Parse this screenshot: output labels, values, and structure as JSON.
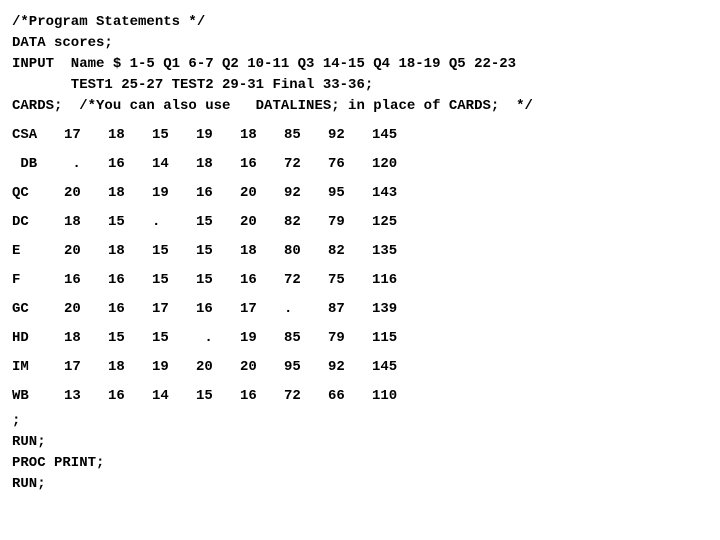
{
  "lines": {
    "comment": "/*Program Statements */",
    "data": "DATA scores;",
    "input1": "INPUT  Name $ 1-5 Q1 6-7 Q2 10-11 Q3 14-15 Q4 18-19 Q5 22-23",
    "input2": "       TEST1 25-27 TEST2 29-31 Final 33-36;",
    "cards": "CARDS;  /*You can also use   DATALINES; in place of CARDS;  */",
    "semi": ";",
    "run1": "RUN;",
    "proc": "PROC PRINT;",
    "run2": "RUN;"
  },
  "rows": [
    [
      "CSA",
      "17",
      "18",
      "15",
      "19",
      "18",
      "85",
      "92",
      "145"
    ],
    [
      " DB",
      " .",
      "16",
      "14",
      "18",
      "16",
      "72",
      "76",
      "120"
    ],
    [
      "QC",
      "20",
      "18",
      "19",
      "16",
      "20",
      "92",
      "95",
      "143"
    ],
    [
      "DC",
      "18",
      "15",
      ".",
      "15",
      "20",
      "82",
      "79",
      "125"
    ],
    [
      "E",
      "20",
      "18",
      "15",
      "15",
      "18",
      "80",
      "82",
      "135"
    ],
    [
      "F",
      "16",
      "16",
      "15",
      "15",
      "16",
      "72",
      "75",
      "116"
    ],
    [
      "GC",
      "20",
      "16",
      "17",
      "16",
      "17",
      ".",
      "87",
      "139"
    ],
    [
      "HD",
      "18",
      "15",
      "15",
      " .",
      "19",
      "85",
      "79",
      "115"
    ],
    [
      "IM",
      "17",
      "18",
      "19",
      "20",
      "20",
      "95",
      "92",
      "145"
    ],
    [
      "WB",
      "13",
      "16",
      "14",
      "15",
      "16",
      "72",
      "66",
      "110"
    ]
  ]
}
